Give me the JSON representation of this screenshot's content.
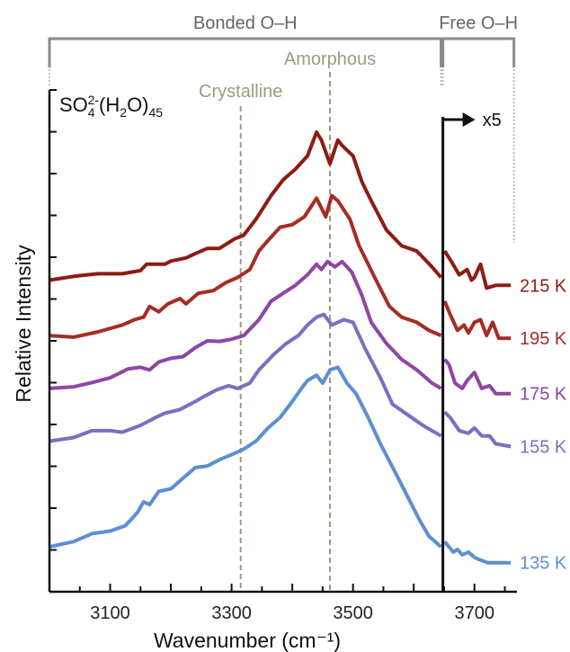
{
  "chart_data": {
    "type": "line",
    "title": "SO₄²⁻(H₂O)₄₅",
    "title_parts": {
      "base": "SO",
      "sub1": "4",
      "sup1": "2-",
      "mid": "(H",
      "sub2": "2",
      "mid2": "O)",
      "sub3": "45"
    },
    "xlabel": "Wavenumber (cm⁻¹)",
    "ylabel": "Relative Intensity",
    "xlim": [
      3000,
      3770
    ],
    "x_ticks": [
      3100,
      3300,
      3500,
      3700
    ],
    "regions": [
      {
        "label": "Bonded O–H",
        "x_range": [
          3000,
          3645
        ]
      },
      {
        "label": "Free O–H",
        "x_range": [
          3648,
          3765
        ]
      }
    ],
    "markers": [
      {
        "label": "Crystalline",
        "x": 3315
      },
      {
        "label": "Amorphous",
        "x": 3462
      }
    ],
    "scale_note": "x5",
    "scale_break_x": 3648,
    "series": [
      {
        "name": "215 K",
        "color": "#8c1c13",
        "bonded": [
          [
            3000,
            5.9
          ],
          [
            3040,
            5.97
          ],
          [
            3080,
            6.02
          ],
          [
            3120,
            6.02
          ],
          [
            3150,
            6.08
          ],
          [
            3160,
            6.2
          ],
          [
            3190,
            6.2
          ],
          [
            3200,
            6.26
          ],
          [
            3225,
            6.32
          ],
          [
            3240,
            6.4
          ],
          [
            3260,
            6.5
          ],
          [
            3280,
            6.5
          ],
          [
            3305,
            6.68
          ],
          [
            3320,
            6.75
          ],
          [
            3340,
            7.05
          ],
          [
            3365,
            7.5
          ],
          [
            3385,
            7.8
          ],
          [
            3405,
            8.0
          ],
          [
            3425,
            8.25
          ],
          [
            3440,
            8.7
          ],
          [
            3448,
            8.55
          ],
          [
            3462,
            8.1
          ],
          [
            3475,
            8.55
          ],
          [
            3482,
            8.45
          ],
          [
            3500,
            8.25
          ],
          [
            3515,
            7.75
          ],
          [
            3530,
            7.4
          ],
          [
            3555,
            6.85
          ],
          [
            3580,
            6.55
          ],
          [
            3605,
            6.45
          ],
          [
            3630,
            6.15
          ],
          [
            3645,
            5.95
          ]
        ],
        "free": [
          [
            3651,
            6.45
          ],
          [
            3662,
            6.25
          ],
          [
            3675,
            6.0
          ],
          [
            3688,
            6.1
          ],
          [
            3695,
            5.9
          ],
          [
            3700,
            5.95
          ],
          [
            3710,
            6.2
          ],
          [
            3720,
            5.75
          ],
          [
            3735,
            5.8
          ],
          [
            3760,
            5.8
          ]
        ]
      },
      {
        "name": "195 K",
        "color": "#a62c24",
        "bonded": [
          [
            3000,
            4.85
          ],
          [
            3040,
            4.82
          ],
          [
            3080,
            4.92
          ],
          [
            3120,
            5.05
          ],
          [
            3140,
            5.15
          ],
          [
            3155,
            5.2
          ],
          [
            3165,
            5.4
          ],
          [
            3180,
            5.3
          ],
          [
            3195,
            5.45
          ],
          [
            3215,
            5.55
          ],
          [
            3225,
            5.45
          ],
          [
            3245,
            5.65
          ],
          [
            3270,
            5.7
          ],
          [
            3290,
            5.85
          ],
          [
            3310,
            5.95
          ],
          [
            3330,
            6.1
          ],
          [
            3345,
            6.45
          ],
          [
            3360,
            6.65
          ],
          [
            3380,
            6.9
          ],
          [
            3400,
            6.95
          ],
          [
            3420,
            7.1
          ],
          [
            3440,
            7.45
          ],
          [
            3455,
            7.1
          ],
          [
            3465,
            7.5
          ],
          [
            3475,
            7.4
          ],
          [
            3495,
            7.05
          ],
          [
            3510,
            6.55
          ],
          [
            3540,
            5.85
          ],
          [
            3560,
            5.4
          ],
          [
            3580,
            5.2
          ],
          [
            3605,
            5.1
          ],
          [
            3625,
            4.95
          ],
          [
            3645,
            4.85
          ]
        ],
        "free": [
          [
            3651,
            5.5
          ],
          [
            3660,
            5.25
          ],
          [
            3672,
            4.95
          ],
          [
            3683,
            5.05
          ],
          [
            3690,
            4.9
          ],
          [
            3700,
            5.1
          ],
          [
            3710,
            5.15
          ],
          [
            3720,
            4.85
          ],
          [
            3730,
            5.1
          ],
          [
            3740,
            4.8
          ],
          [
            3760,
            4.8
          ]
        ]
      },
      {
        "name": "175 K",
        "color": "#8e46a4",
        "bonded": [
          [
            3000,
            3.85
          ],
          [
            3040,
            3.88
          ],
          [
            3070,
            3.96
          ],
          [
            3100,
            4.05
          ],
          [
            3130,
            4.22
          ],
          [
            3150,
            4.25
          ],
          [
            3165,
            4.2
          ],
          [
            3180,
            4.35
          ],
          [
            3200,
            4.42
          ],
          [
            3220,
            4.45
          ],
          [
            3240,
            4.62
          ],
          [
            3260,
            4.75
          ],
          [
            3280,
            4.74
          ],
          [
            3300,
            4.78
          ],
          [
            3320,
            4.85
          ],
          [
            3345,
            5.15
          ],
          [
            3365,
            5.5
          ],
          [
            3385,
            5.65
          ],
          [
            3405,
            5.8
          ],
          [
            3425,
            6.0
          ],
          [
            3440,
            6.2
          ],
          [
            3448,
            6.1
          ],
          [
            3458,
            6.25
          ],
          [
            3470,
            6.15
          ],
          [
            3482,
            6.25
          ],
          [
            3498,
            6.05
          ],
          [
            3515,
            5.6
          ],
          [
            3530,
            5.1
          ],
          [
            3555,
            4.7
          ],
          [
            3580,
            4.4
          ],
          [
            3605,
            4.2
          ],
          [
            3630,
            3.95
          ],
          [
            3645,
            3.85
          ]
        ],
        "free": [
          [
            3651,
            4.4
          ],
          [
            3658,
            4.3
          ],
          [
            3668,
            3.95
          ],
          [
            3680,
            3.85
          ],
          [
            3688,
            4.0
          ],
          [
            3700,
            4.15
          ],
          [
            3712,
            3.85
          ],
          [
            3725,
            3.9
          ],
          [
            3735,
            3.75
          ],
          [
            3745,
            3.75
          ],
          [
            3760,
            3.75
          ]
        ]
      },
      {
        "name": "155 K",
        "color": "#7a6fc0",
        "bonded": [
          [
            3000,
            2.85
          ],
          [
            3040,
            2.92
          ],
          [
            3070,
            3.05
          ],
          [
            3100,
            3.05
          ],
          [
            3120,
            3.02
          ],
          [
            3150,
            3.15
          ],
          [
            3175,
            3.3
          ],
          [
            3190,
            3.38
          ],
          [
            3215,
            3.45
          ],
          [
            3240,
            3.6
          ],
          [
            3255,
            3.7
          ],
          [
            3275,
            3.82
          ],
          [
            3295,
            3.9
          ],
          [
            3310,
            3.85
          ],
          [
            3330,
            3.95
          ],
          [
            3345,
            4.2
          ],
          [
            3370,
            4.5
          ],
          [
            3390,
            4.7
          ],
          [
            3410,
            4.85
          ],
          [
            3425,
            5.05
          ],
          [
            3440,
            5.2
          ],
          [
            3452,
            5.25
          ],
          [
            3465,
            5.05
          ],
          [
            3485,
            5.15
          ],
          [
            3500,
            5.1
          ],
          [
            3520,
            4.6
          ],
          [
            3545,
            4.05
          ],
          [
            3565,
            3.55
          ],
          [
            3590,
            3.35
          ],
          [
            3615,
            3.15
          ],
          [
            3645,
            2.95
          ]
        ],
        "free": [
          [
            3651,
            3.4
          ],
          [
            3660,
            3.3
          ],
          [
            3675,
            3.05
          ],
          [
            3690,
            3.0
          ],
          [
            3700,
            3.1
          ],
          [
            3712,
            2.95
          ],
          [
            3725,
            2.95
          ],
          [
            3735,
            2.8
          ],
          [
            3760,
            2.75
          ]
        ]
      },
      {
        "name": "135 K",
        "color": "#5b8fd3",
        "bonded": [
          [
            3000,
            0.85
          ],
          [
            3040,
            0.95
          ],
          [
            3070,
            1.1
          ],
          [
            3100,
            1.15
          ],
          [
            3125,
            1.25
          ],
          [
            3145,
            1.5
          ],
          [
            3155,
            1.7
          ],
          [
            3165,
            1.65
          ],
          [
            3180,
            1.9
          ],
          [
            3200,
            1.95
          ],
          [
            3220,
            2.15
          ],
          [
            3240,
            2.35
          ],
          [
            3260,
            2.38
          ],
          [
            3280,
            2.5
          ],
          [
            3305,
            2.62
          ],
          [
            3320,
            2.7
          ],
          [
            3340,
            2.85
          ],
          [
            3360,
            3.1
          ],
          [
            3380,
            3.3
          ],
          [
            3400,
            3.6
          ],
          [
            3415,
            3.85
          ],
          [
            3425,
            4.0
          ],
          [
            3440,
            4.1
          ],
          [
            3450,
            3.95
          ],
          [
            3462,
            4.2
          ],
          [
            3475,
            4.25
          ],
          [
            3490,
            3.95
          ],
          [
            3505,
            3.75
          ],
          [
            3525,
            3.3
          ],
          [
            3545,
            2.8
          ],
          [
            3570,
            2.25
          ],
          [
            3590,
            1.8
          ],
          [
            3610,
            1.35
          ],
          [
            3625,
            1.05
          ],
          [
            3645,
            0.85
          ]
        ],
        "free": [
          [
            3651,
            0.95
          ],
          [
            3658,
            0.85
          ],
          [
            3665,
            0.75
          ],
          [
            3672,
            0.8
          ],
          [
            3680,
            0.7
          ],
          [
            3690,
            0.75
          ],
          [
            3700,
            0.65
          ],
          [
            3710,
            0.6
          ],
          [
            3722,
            0.55
          ],
          [
            3735,
            0.55
          ],
          [
            3760,
            0.55
          ]
        ]
      }
    ],
    "ylim": [
      0,
      9.5
    ]
  }
}
